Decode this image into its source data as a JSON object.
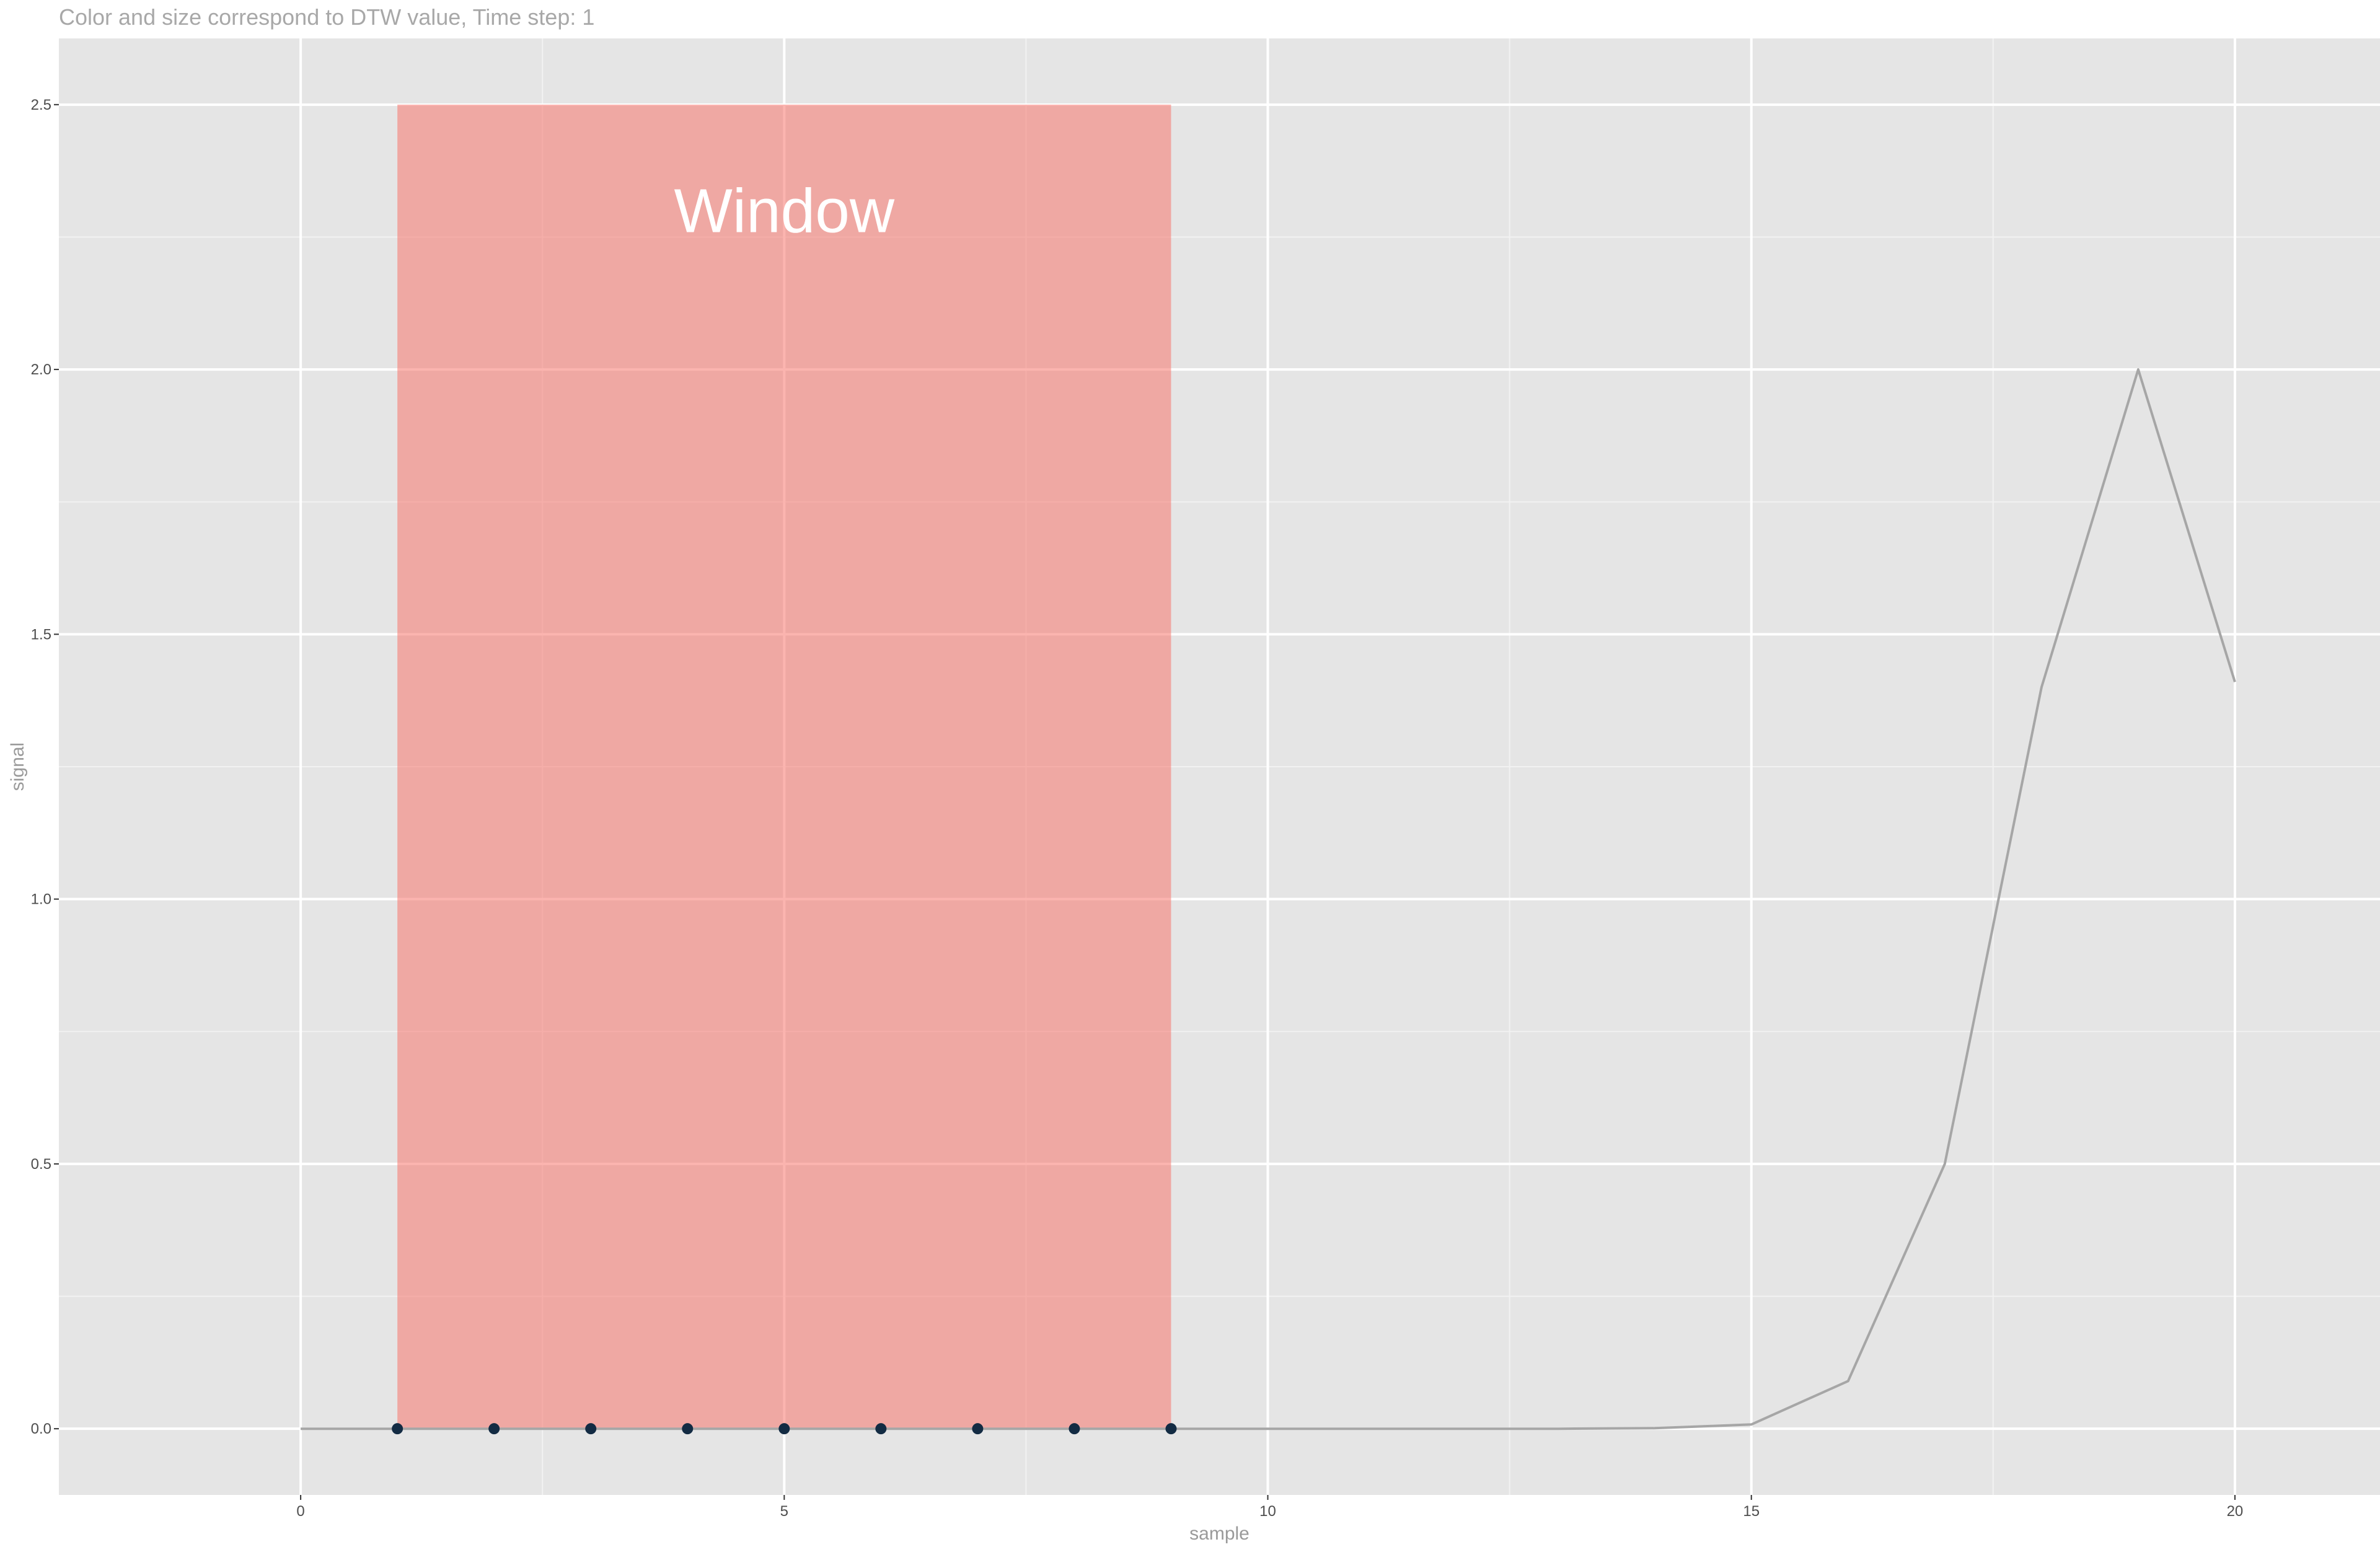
{
  "chart_data": {
    "type": "line",
    "title": "Color and size correspond to DTW value, Time step: 1",
    "xlabel": "sample",
    "ylabel": "signal",
    "xlim": [
      -2.5,
      21.5
    ],
    "ylim": [
      -0.125,
      2.625
    ],
    "x_ticks": [
      0,
      5,
      10,
      15,
      20
    ],
    "x_tick_labels": [
      "0",
      "5",
      "10",
      "15",
      "20"
    ],
    "y_ticks": [
      0,
      0.5,
      1,
      1.5,
      2,
      2.5
    ],
    "y_tick_labels": [
      "0.0",
      "0.5",
      "1.0",
      "1.5",
      "2.0",
      "2.5"
    ],
    "grid": true,
    "series": [
      {
        "x": [
          0,
          1,
          2,
          3,
          4,
          5,
          6,
          7,
          8,
          9,
          10,
          11,
          12,
          13,
          14,
          15,
          16,
          17,
          18,
          19,
          20
        ],
        "values": [
          0,
          0,
          0,
          0,
          0,
          0,
          0,
          0,
          0,
          0,
          0,
          0,
          0,
          0,
          0.001,
          0.008,
          0.09,
          0.5,
          1.4,
          2.0,
          1.41
        ],
        "color": "#a6a6a6"
      }
    ],
    "window": {
      "label": "Window",
      "x_range": [
        1,
        9
      ],
      "y_range": [
        0,
        2.5
      ],
      "label_position": [
        5,
        2.3
      ],
      "color": "#f8766d"
    },
    "points": {
      "x": [
        1,
        2,
        3,
        4,
        5,
        6,
        7,
        8,
        9
      ],
      "values": [
        0,
        0,
        0,
        0,
        0,
        0,
        0,
        0,
        0
      ],
      "color": "#132b43"
    },
    "colors": {
      "panel_background": "#e5e5e5",
      "grid_major": "#ffffff",
      "grid_minor": "#f2f2f2"
    }
  }
}
